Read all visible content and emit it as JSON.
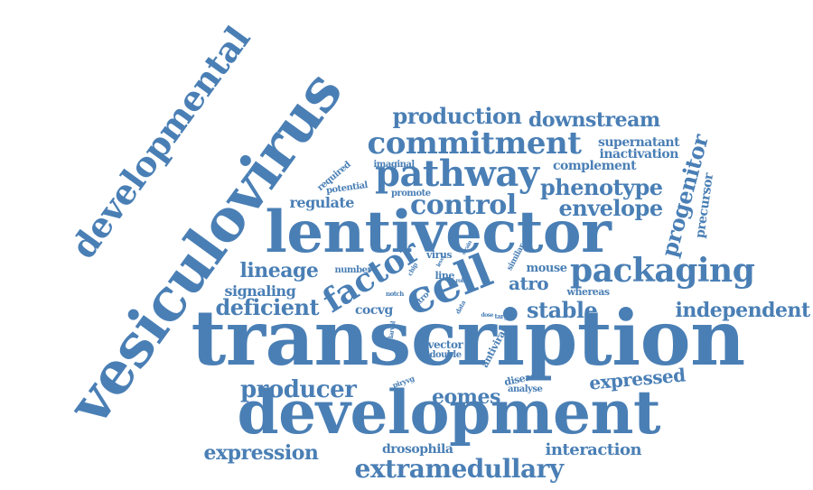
{
  "cloud": {
    "color": "#4a7fb5",
    "words": [
      {
        "id": "transcription",
        "text": "transcription"
      },
      {
        "id": "development",
        "text": "development"
      },
      {
        "id": "lentivector",
        "text": "lentivector"
      },
      {
        "id": "vesiculovirus",
        "text": "vesiculovirus"
      },
      {
        "id": "developmental",
        "text": "developmental"
      },
      {
        "id": "packaging",
        "text": "packaging"
      },
      {
        "id": "cell",
        "text": "cell"
      },
      {
        "id": "pathway",
        "text": "pathway"
      },
      {
        "id": "commitment",
        "text": "commitment"
      },
      {
        "id": "extramedullary",
        "text": "extramedullary"
      },
      {
        "id": "factor",
        "text": "factor"
      },
      {
        "id": "control",
        "text": "control"
      },
      {
        "id": "production",
        "text": "production"
      },
      {
        "id": "downstream",
        "text": "downstream"
      },
      {
        "id": "phenotype",
        "text": "phenotype"
      },
      {
        "id": "envelope",
        "text": "envelope"
      },
      {
        "id": "progenitor",
        "text": "progenitor"
      },
      {
        "id": "independent",
        "text": "independent"
      },
      {
        "id": "stable",
        "text": "stable"
      },
      {
        "id": "deficient",
        "text": "deficient"
      },
      {
        "id": "lineage",
        "text": "lineage"
      },
      {
        "id": "producer",
        "text": "producer"
      },
      {
        "id": "expression",
        "text": "expression"
      },
      {
        "id": "eomes",
        "text": "eomes"
      },
      {
        "id": "expressed",
        "text": "expressed"
      },
      {
        "id": "interaction",
        "text": "interaction"
      },
      {
        "id": "regulate",
        "text": "regulate"
      },
      {
        "id": "signaling",
        "text": "signaling"
      },
      {
        "id": "atro",
        "text": "atro"
      },
      {
        "id": "supernatant",
        "text": "supernatant"
      },
      {
        "id": "inactivation",
        "text": "inactivation"
      },
      {
        "id": "complement",
        "text": "complement"
      },
      {
        "id": "precursor",
        "text": "precursor"
      },
      {
        "id": "drosophila",
        "text": "drosophila"
      },
      {
        "id": "cocvg",
        "text": "cocvg"
      },
      {
        "id": "mouse",
        "text": "mouse"
      },
      {
        "id": "whereas",
        "text": "whereas"
      },
      {
        "id": "vector",
        "text": "vector"
      },
      {
        "id": "double",
        "text": "double"
      },
      {
        "id": "antiviral",
        "text": "antiviral"
      },
      {
        "id": "disease",
        "text": "disease"
      },
      {
        "id": "analyse",
        "text": "analyse"
      },
      {
        "id": "required",
        "text": "required"
      },
      {
        "id": "imaginal",
        "text": "imaginal"
      },
      {
        "id": "potential",
        "text": "potential"
      },
      {
        "id": "promote",
        "text": "promote"
      },
      {
        "id": "number",
        "text": "number"
      },
      {
        "id": "virus",
        "text": "virus"
      },
      {
        "id": "line",
        "text": "line"
      },
      {
        "id": "similar",
        "text": "similar"
      },
      {
        "id": "vitro",
        "text": "vitro"
      },
      {
        "id": "notch",
        "text": "notch"
      },
      {
        "id": "target",
        "text": "target"
      },
      {
        "id": "larval",
        "text": "larval"
      },
      {
        "id": "piryvg",
        "text": "piryvg"
      },
      {
        "id": "chip",
        "text": "chip"
      },
      {
        "id": "data",
        "text": "data"
      },
      {
        "id": "role",
        "text": "role"
      },
      {
        "id": "strain",
        "text": "strain"
      },
      {
        "id": "dose",
        "text": "dose"
      },
      {
        "id": "level",
        "text": "level"
      }
    ]
  }
}
